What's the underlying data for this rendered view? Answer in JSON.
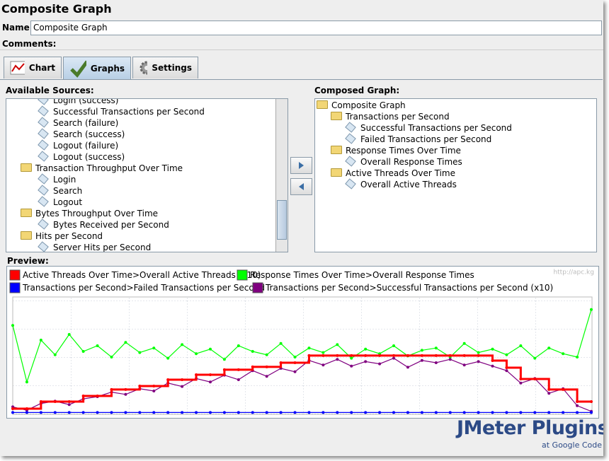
{
  "window": {
    "title": "Composite Graph"
  },
  "form": {
    "name_label": "Name:",
    "name_value": "Composite Graph",
    "comments_label": "Comments:"
  },
  "tabs": [
    "Chart",
    "Graphs",
    "Settings"
  ],
  "available_sources": {
    "label": "Available Sources:",
    "items": [
      {
        "text": "Login (success)",
        "kind": "leaf"
      },
      {
        "text": "Successful Transactions per Second",
        "kind": "leaf"
      },
      {
        "text": "Search (failure)",
        "kind": "leaf"
      },
      {
        "text": "Search (success)",
        "kind": "leaf"
      },
      {
        "text": "Logout (failure)",
        "kind": "leaf"
      },
      {
        "text": "Logout (success)",
        "kind": "leaf"
      },
      {
        "text": "Transaction Throughput Over Time",
        "kind": "folder"
      },
      {
        "text": "Login",
        "kind": "leaf"
      },
      {
        "text": "Search",
        "kind": "leaf"
      },
      {
        "text": "Logout",
        "kind": "leaf"
      },
      {
        "text": "Bytes Throughput Over Time",
        "kind": "folder"
      },
      {
        "text": "Bytes Received per Second",
        "kind": "leaf"
      },
      {
        "text": "Hits per Second",
        "kind": "folder"
      },
      {
        "text": "Server Hits per Second",
        "kind": "leaf"
      }
    ]
  },
  "composed_graph": {
    "label": "Composed Graph:",
    "root": "Composite Graph",
    "items": [
      {
        "text": "Transactions per Second",
        "kind": "folder"
      },
      {
        "text": "Successful Transactions per Second",
        "kind": "leaf"
      },
      {
        "text": "Failed Transactions per Second",
        "kind": "leaf"
      },
      {
        "text": "Response Times Over Time",
        "kind": "folder"
      },
      {
        "text": "Overall Response Times",
        "kind": "leaf"
      },
      {
        "text": "Active Threads Over Time",
        "kind": "folder"
      },
      {
        "text": "Overall Active Threads",
        "kind": "leaf"
      }
    ]
  },
  "preview": {
    "label": "Preview:",
    "watermark": "http://apc.kg"
  },
  "branding": {
    "title": "JMeter Plugins",
    "subtitle": "at Google Code"
  },
  "chart_data": {
    "type": "line",
    "categories": [
      null,
      null,
      null,
      null,
      null,
      null,
      null,
      null,
      null,
      null,
      null,
      null,
      null,
      null,
      null,
      null,
      null,
      null,
      null,
      null,
      null,
      null,
      null,
      null,
      null,
      null,
      null,
      null,
      null,
      null,
      null,
      null,
      null,
      null,
      null,
      null,
      null,
      null,
      null,
      null,
      null,
      null
    ],
    "ylim": [
      0,
      100
    ],
    "series": [
      {
        "name": "Active Threads Over Time>Overall Active Threads (x10)",
        "color": "#ff0000",
        "step": true,
        "values": [
          4.4,
          4.4,
          10.6,
          10.6,
          10.6,
          15.6,
          15.6,
          21.3,
          21.3,
          24.4,
          24.4,
          30,
          30,
          34.4,
          34.4,
          38.8,
          38.8,
          41.3,
          41.3,
          45,
          45,
          51.3,
          51.3,
          51.3,
          51.3,
          51.3,
          51.3,
          51.3,
          51.3,
          51.3,
          51.3,
          51.3,
          51.3,
          51.3,
          46.9,
          40.6,
          30.6,
          30.6,
          21.3,
          21.3,
          10.6,
          10.6
        ]
      },
      {
        "name": "Response Times Over Time>Overall Response Times",
        "color": "#00ff00",
        "step": false,
        "values": [
          78,
          28,
          65,
          52,
          70,
          55,
          60,
          50,
          63,
          54,
          58,
          49,
          61,
          53,
          57,
          48,
          60,
          55,
          52,
          62,
          50,
          58,
          54,
          61,
          49,
          57,
          53,
          60,
          51,
          56,
          58,
          50,
          62,
          54,
          57,
          52,
          60,
          49,
          58,
          53,
          50,
          92
        ]
      },
      {
        "name": "Transactions per Second>Failed Transactions per Second",
        "color": "#0000ff",
        "step": false,
        "values": [
          1,
          1,
          1,
          1,
          1,
          1,
          1,
          1,
          1,
          1,
          1,
          1,
          1,
          1,
          1,
          1,
          1,
          1,
          1,
          1,
          1,
          1,
          1,
          1,
          1,
          1,
          1,
          1,
          1,
          1,
          1,
          1,
          1,
          1,
          1,
          1,
          1,
          1,
          1,
          1,
          1,
          1
        ]
      },
      {
        "name": "Transactions per Second>Successful Transactions per Second (x10)",
        "color": "#800080",
        "step": false,
        "values": [
          6,
          3,
          9,
          11,
          8,
          13,
          15,
          19,
          17,
          22,
          20,
          27,
          24,
          31,
          28,
          34,
          30,
          38,
          33,
          40,
          37,
          47,
          43,
          48,
          42,
          46,
          44,
          49,
          41,
          47,
          45,
          48,
          43,
          46,
          42,
          38,
          27,
          31,
          18,
          22,
          7,
          2
        ]
      }
    ]
  }
}
